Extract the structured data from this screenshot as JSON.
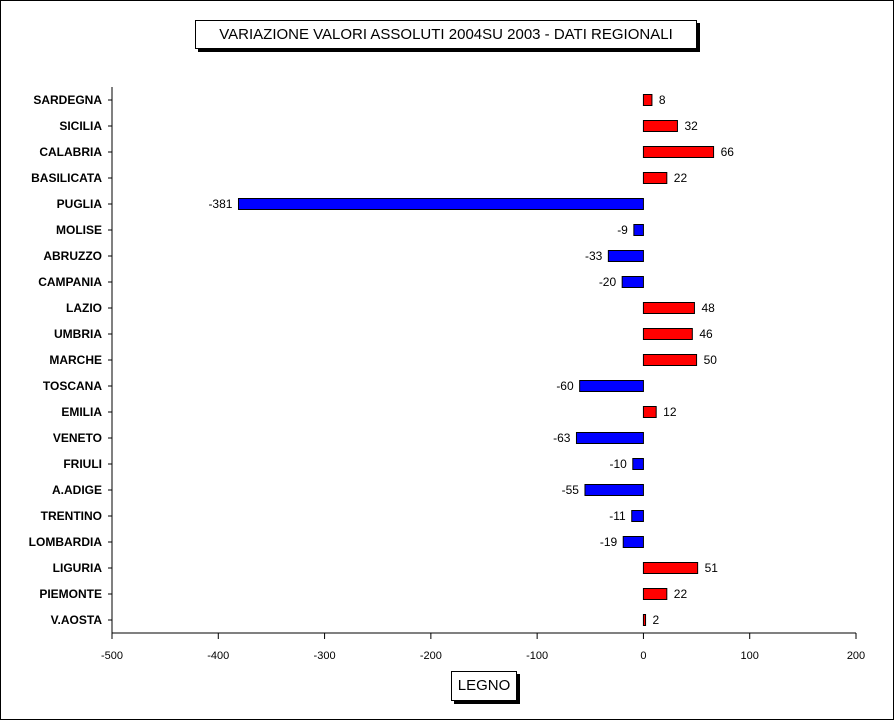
{
  "title": "VARIAZIONE  VALORI ASSOLUTI 2004SU 2003 - DATI REGIONALI",
  "colors": {
    "positive": "#ff0000",
    "negative": "#0000ff",
    "axis": "#000000"
  },
  "chart_data": {
    "type": "bar",
    "orientation": "horizontal",
    "title": "VARIAZIONE  VALORI ASSOLUTI 2004SU 2003 - DATI REGIONALI",
    "xlabel": "LEGNO",
    "ylabel": "",
    "xlim": [
      -500,
      200
    ],
    "xticks": [
      -500,
      -400,
      -300,
      -200,
      -100,
      0,
      100,
      200
    ],
    "grid": false,
    "categories": [
      "SARDEGNA",
      "SICILIA",
      "CALABRIA",
      "BASILICATA",
      "PUGLIA",
      "MOLISE",
      "ABRUZZO",
      "CAMPANIA",
      "LAZIO",
      "UMBRIA",
      "MARCHE",
      "TOSCANA",
      "EMILIA",
      "VENETO",
      "FRIULI",
      "A.ADIGE",
      "TRENTINO",
      "LOMBARDIA",
      "LIGURIA",
      "PIEMONTE",
      "V.AOSTA"
    ],
    "values": [
      8,
      32,
      66,
      22,
      -381,
      -9,
      -33,
      -20,
      48,
      46,
      50,
      -60,
      12,
      -63,
      -10,
      -55,
      -11,
      -19,
      51,
      22,
      2
    ]
  }
}
